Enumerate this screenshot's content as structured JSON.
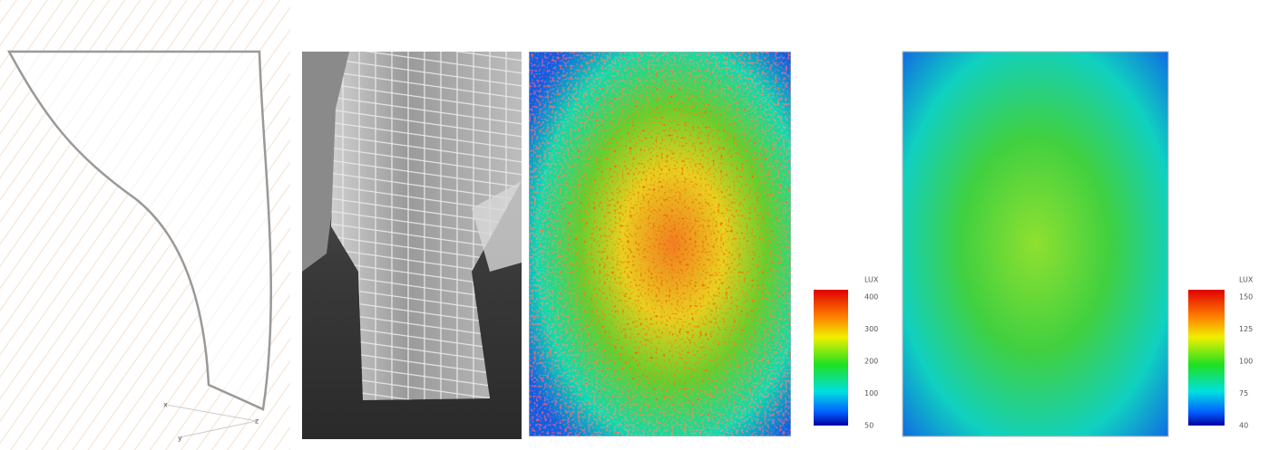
{
  "figure": {
    "axis_letters": [
      "x",
      "z",
      "y"
    ],
    "colorbars": [
      {
        "unit": "LUX",
        "labels": [
          "400",
          "300",
          "200",
          "100",
          "50"
        ]
      },
      {
        "unit": "LUX",
        "labels": [
          "150",
          "125",
          "100",
          "75",
          "40"
        ]
      }
    ]
  }
}
